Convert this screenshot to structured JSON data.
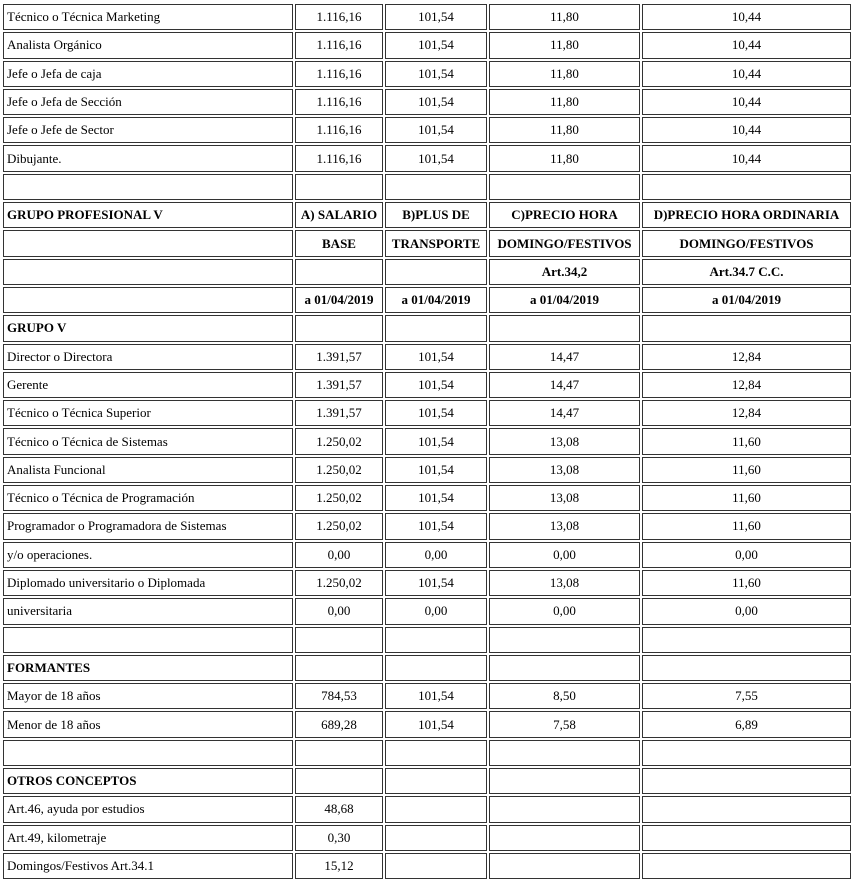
{
  "table": {
    "rows": [
      {
        "bold": false,
        "cells": [
          "Técnico o Técnica Marketing",
          "1.116,16",
          "101,54",
          "11,80",
          "10,44"
        ]
      },
      {
        "bold": false,
        "cells": [
          "Analista Orgánico",
          "1.116,16",
          "101,54",
          "11,80",
          "10,44"
        ]
      },
      {
        "bold": false,
        "cells": [
          "Jefe o Jefa de caja",
          "1.116,16",
          "101,54",
          "11,80",
          "10,44"
        ]
      },
      {
        "bold": false,
        "cells": [
          "Jefe o Jefa de Sección",
          "1.116,16",
          "101,54",
          "11,80",
          "10,44"
        ]
      },
      {
        "bold": false,
        "cells": [
          "Jefe o Jefe de Sector",
          "1.116,16",
          "101,54",
          "11,80",
          "10,44"
        ]
      },
      {
        "bold": false,
        "cells": [
          "Dibujante.",
          "1.116,16",
          "101,54",
          "11,80",
          "10,44"
        ]
      },
      {
        "bold": false,
        "cells": [
          "",
          "",
          "",
          "",
          ""
        ]
      },
      {
        "bold": true,
        "cells": [
          "GRUPO PROFESIONAL V",
          "A) SALARIO",
          "B)PLUS DE",
          "C)PRECIO HORA",
          "D)PRECIO HORA ORDINARIA"
        ]
      },
      {
        "bold": true,
        "cells": [
          "",
          "BASE",
          "TRANSPORTE",
          "DOMINGO/FESTIVOS",
          "DOMINGO/FESTIVOS"
        ]
      },
      {
        "bold": true,
        "cells": [
          "",
          "",
          "",
          "Art.34,2",
          "Art.34.7 C.C."
        ]
      },
      {
        "bold": true,
        "cells": [
          "",
          "a 01/04/2019",
          "a 01/04/2019",
          "a 01/04/2019",
          "a 01/04/2019"
        ]
      },
      {
        "bold": true,
        "cells": [
          "GRUPO V",
          "",
          "",
          "",
          ""
        ]
      },
      {
        "bold": false,
        "cells": [
          "Director o Directora",
          "1.391,57",
          "101,54",
          "14,47",
          "12,84"
        ]
      },
      {
        "bold": false,
        "cells": [
          "Gerente",
          "1.391,57",
          "101,54",
          "14,47",
          "12,84"
        ]
      },
      {
        "bold": false,
        "cells": [
          "Técnico o Técnica Superior",
          "1.391,57",
          "101,54",
          "14,47",
          "12,84"
        ]
      },
      {
        "bold": false,
        "cells": [
          "Técnico o Técnica de Sistemas",
          "1.250,02",
          "101,54",
          "13,08",
          "11,60"
        ]
      },
      {
        "bold": false,
        "cells": [
          "Analista Funcional",
          "1.250,02",
          "101,54",
          "13,08",
          "11,60"
        ]
      },
      {
        "bold": false,
        "cells": [
          "Técnico o Técnica de Programación",
          "1.250,02",
          "101,54",
          "13,08",
          "11,60"
        ]
      },
      {
        "bold": false,
        "cells": [
          "Programador o Programadora de Sistemas",
          "1.250,02",
          "101,54",
          "13,08",
          "11,60"
        ]
      },
      {
        "bold": false,
        "cells": [
          "y/o operaciones.",
          "0,00",
          "0,00",
          "0,00",
          "0,00"
        ]
      },
      {
        "bold": false,
        "cells": [
          "Diplomado universitario o Diplomada",
          "1.250,02",
          "101,54",
          "13,08",
          "11,60"
        ]
      },
      {
        "bold": false,
        "cells": [
          "universitaria",
          "0,00",
          "0,00",
          "0,00",
          "0,00"
        ]
      },
      {
        "bold": false,
        "cells": [
          "",
          "",
          "",
          "",
          ""
        ]
      },
      {
        "bold": true,
        "cells": [
          "FORMANTES",
          "",
          "",
          "",
          ""
        ]
      },
      {
        "bold": false,
        "cells": [
          "Mayor de 18 años",
          "784,53",
          "101,54",
          "8,50",
          "7,55"
        ]
      },
      {
        "bold": false,
        "cells": [
          "Menor de 18 años",
          "689,28",
          "101,54",
          "7,58",
          "6,89"
        ]
      },
      {
        "bold": false,
        "cells": [
          "",
          "",
          "",
          "",
          ""
        ]
      },
      {
        "bold": true,
        "cells": [
          "OTROS CONCEPTOS",
          "",
          "",
          "",
          ""
        ]
      },
      {
        "bold": false,
        "cells": [
          "Art.46, ayuda por estudios",
          "48,68",
          "",
          "",
          ""
        ]
      },
      {
        "bold": false,
        "cells": [
          "Art.49, kilometraje",
          "0,30",
          "",
          "",
          ""
        ]
      },
      {
        "bold": false,
        "cells": [
          "Domingos/Festivos Art.34.1",
          "15,12",
          "",
          "",
          ""
        ]
      }
    ]
  }
}
